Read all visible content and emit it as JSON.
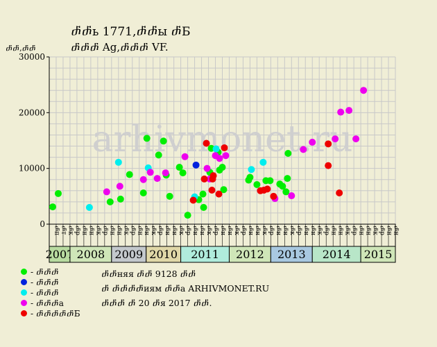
{
  "title_line1": "ⴥⴥь 1771,ⴥⴥы ⴥБ",
  "title_line2": "ⴥⴥⴥ Ag,ⴥⴥⴥ VF.",
  "y_unit": "ⴥⴥ,ⴥⴥ",
  "watermark": "arhivmonet.ru",
  "legend": [
    {
      "label": "- ⴥⴥⴥ",
      "color": "#00ee00"
    },
    {
      "label": "- ⴥⴥⴥ",
      "color": "#0022dd"
    },
    {
      "label": "- ⴥⴥⴥ",
      "color": "#00eeee"
    },
    {
      "label": "- ⴥⴥⴥа",
      "color": "#ee00ee"
    },
    {
      "label": "- ⴥⴥⴥⴥⴥБ",
      "color": "#ee0000"
    }
  ],
  "info": {
    "line1": "ⴥⴥняя ⴥⴥ 9128 ⴥⴥ",
    "line2": "ⴥ ⴥⴥⴥⴥиям ⴥⴥа ARHIVMONET.RU",
    "line3": "ⴥⴥⴥ ⴥ 20 ⴥя 2017 ⴥⴥ."
  },
  "chart_data": {
    "type": "scatter",
    "ylim": [
      0,
      30000
    ],
    "yticks": [
      0,
      10000,
      20000,
      30000
    ],
    "grid": true,
    "month_labels": [
      "ⴥп",
      "ⴥт",
      "ⴥк",
      "ⴥр",
      "ⴥн",
      "ⴥн",
      "ⴥк",
      "ⴥр",
      "ⴥн",
      "ⴥн",
      "ⴥк",
      "ⴥр",
      "ⴥн",
      "ⴥн",
      "ⴥк",
      "ⴥр",
      "ⴥн",
      "ⴥн",
      "ⴥк",
      "ⴥр",
      "ⴥн",
      "ⴥн",
      "ⴥк",
      "ⴥр",
      "ⴥн",
      "ⴥн",
      "ⴥк",
      "ⴥр",
      "ⴥн",
      "ⴥн",
      "ⴥк",
      "ⴥр",
      "ⴥн",
      "ⴥн",
      "ⴥк",
      "ⴥр",
      "ⴥн",
      "ⴥн",
      "ⴥк",
      "ⴥр",
      "ⴥн",
      "ⴥн",
      "ⴥк",
      "ⴥр",
      "ⴥн",
      "ⴥн",
      "ⴥк",
      "ⴥр",
      "ⴥн",
      "ⴥн"
    ],
    "years": [
      {
        "label": "2007",
        "start": 0,
        "span": 3,
        "color": "#b8dba0"
      },
      {
        "label": "2008",
        "start": 3,
        "span": 6,
        "color": "#cfe6b8"
      },
      {
        "label": "2009",
        "start": 9,
        "span": 5,
        "color": "#c3c8cc"
      },
      {
        "label": "2010",
        "start": 14,
        "span": 5,
        "color": "#e0d8a8"
      },
      {
        "label": "2011",
        "start": 19,
        "span": 7,
        "color": "#b0ecdc"
      },
      {
        "label": "2012",
        "start": 26,
        "span": 6,
        "color": "#cfe6b8"
      },
      {
        "label": "2013",
        "start": 32,
        "span": 6,
        "color": "#a8c8e0"
      },
      {
        "label": "2014",
        "start": 38,
        "span": 7,
        "color": "#b8e6c8"
      },
      {
        "label": "2015",
        "start": 45,
        "span": 5,
        "color": "#cfe6b8"
      }
    ],
    "series": [
      {
        "color": "#00ee00",
        "points": [
          [
            0.5,
            3100
          ],
          [
            1.3,
            5500
          ],
          [
            8.8,
            4000
          ],
          [
            10.3,
            4500
          ],
          [
            11.6,
            8900
          ],
          [
            13.6,
            5600
          ],
          [
            14.1,
            15400
          ],
          [
            15.8,
            12400
          ],
          [
            16.5,
            14900
          ],
          [
            16.9,
            8800
          ],
          [
            17.4,
            5000
          ],
          [
            18.8,
            10200
          ],
          [
            19.3,
            9200
          ],
          [
            20.0,
            1600
          ],
          [
            21.6,
            4400
          ],
          [
            22.2,
            5400
          ],
          [
            22.3,
            3000
          ],
          [
            23.4,
            13600
          ],
          [
            23.2,
            9300
          ],
          [
            24.4,
            12900
          ],
          [
            24.6,
            9700
          ],
          [
            25.0,
            10200
          ],
          [
            25.2,
            6200
          ],
          [
            28.8,
            7900
          ],
          [
            29.0,
            8400
          ],
          [
            30.0,
            7100
          ],
          [
            31.3,
            7800
          ],
          [
            31.9,
            7800
          ],
          [
            33.3,
            7200
          ],
          [
            33.7,
            6800
          ],
          [
            34.2,
            5800
          ],
          [
            34.4,
            8200
          ],
          [
            34.5,
            12700
          ]
        ]
      },
      {
        "color": "#0022dd",
        "points": [
          [
            21.2,
            10600
          ]
        ]
      },
      {
        "color": "#00eeee",
        "points": [
          [
            5.8,
            3000
          ],
          [
            10.0,
            11100
          ],
          [
            14.3,
            10100
          ],
          [
            21.0,
            4900
          ],
          [
            24.1,
            13500
          ],
          [
            29.2,
            9800
          ],
          [
            30.9,
            11100
          ]
        ]
      },
      {
        "color": "#ee00ee",
        "points": [
          [
            8.3,
            5800
          ],
          [
            10.2,
            6800
          ],
          [
            13.6,
            8000
          ],
          [
            14.6,
            9300
          ],
          [
            15.6,
            8200
          ],
          [
            16.8,
            9200
          ],
          [
            19.6,
            12100
          ],
          [
            22.8,
            10000
          ],
          [
            23.2,
            8100
          ],
          [
            24.6,
            11800
          ],
          [
            24.0,
            12300
          ],
          [
            25.5,
            12300
          ],
          [
            32.6,
            4600
          ],
          [
            35.0,
            5100
          ],
          [
            36.7,
            13400
          ],
          [
            38.0,
            14700
          ],
          [
            41.3,
            15300
          ],
          [
            42.1,
            20100
          ],
          [
            43.3,
            20400
          ],
          [
            44.3,
            15300
          ],
          [
            45.4,
            24000
          ]
        ]
      },
      {
        "color": "#ee0000",
        "points": [
          [
            20.8,
            4300
          ],
          [
            22.4,
            8100
          ],
          [
            22.7,
            14500
          ],
          [
            23.5,
            6100
          ],
          [
            23.6,
            8100
          ],
          [
            23.7,
            8700
          ],
          [
            24.5,
            5400
          ],
          [
            25.3,
            13700
          ],
          [
            30.5,
            6000
          ],
          [
            31.0,
            6100
          ],
          [
            31.5,
            6300
          ],
          [
            32.4,
            5000
          ],
          [
            40.3,
            14400
          ],
          [
            40.3,
            10500
          ],
          [
            41.9,
            5600
          ]
        ]
      }
    ]
  }
}
